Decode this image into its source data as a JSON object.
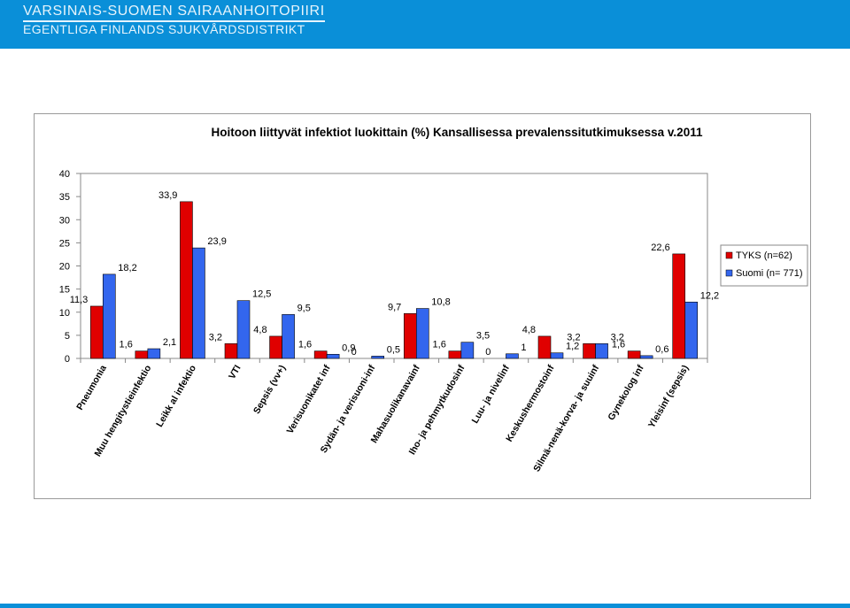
{
  "header": {
    "line1": "VARSINAIS-SUOMEN SAIRAANHOITOPIIRI",
    "line2": "EGENTLIGA FINLANDS SJUKVÅRDSDISTRIKT"
  },
  "colors": {
    "header_bg": "#0a8fd8",
    "series_red": "#e00000",
    "series_blue": "#3366ee"
  },
  "chart_data": {
    "type": "bar",
    "title": "Hoitoon liittyvät infektiot luokittain (%) Kansallisessa prevalenssitutkimuksessa v.2011",
    "categories": [
      "Pneumonia",
      "Muu hengitystieinfektio",
      "Leikk al infektio",
      "VTI",
      "Sepsis (vv+)",
      "Verisuonikatet inf",
      "Sydän- ja verisuoni-inf",
      "Mahasuolikanavainf",
      "Iho- ja pehmytkudosinf",
      "Luu- ja nivelinf",
      "Keskushermostoinf",
      "Silmä-nenä-korva- ja suuinf",
      "Gynekolog inf",
      "Yleisinf (sepsis)"
    ],
    "series": [
      {
        "name": "TYKS (n=62)",
        "color": "#e00000",
        "values": [
          11.3,
          1.6,
          33.9,
          3.2,
          4.8,
          1.6,
          0,
          9.7,
          1.6,
          0,
          4.8,
          3.2,
          1.6,
          22.6
        ],
        "labels": [
          "11,3",
          "1,6",
          "33,9",
          "3,2",
          "4,8",
          "1,6",
          "0",
          "9,7",
          "1,6",
          "0",
          "4,8",
          "3,2",
          "1,6",
          "22,6"
        ]
      },
      {
        "name": "Suomi (n= 771)",
        "color": "#3366ee",
        "values": [
          18.2,
          2.1,
          23.9,
          12.5,
          9.5,
          0.9,
          0.5,
          10.8,
          3.5,
          1,
          1.2,
          3.2,
          0.6,
          12.2
        ],
        "labels": [
          "18,2",
          "2,1",
          "23,9",
          "12,5",
          "9,5",
          "0,9",
          "0,5",
          "10,8",
          "3,5",
          "1",
          "1,2",
          "3,2",
          "0,6",
          "12,2"
        ]
      }
    ],
    "ylim": [
      0,
      40
    ],
    "yticks": [
      0,
      5,
      10,
      15,
      20,
      25,
      30,
      35,
      40
    ],
    "xlabel": "",
    "ylabel": "",
    "grid": false,
    "legend": "right"
  }
}
